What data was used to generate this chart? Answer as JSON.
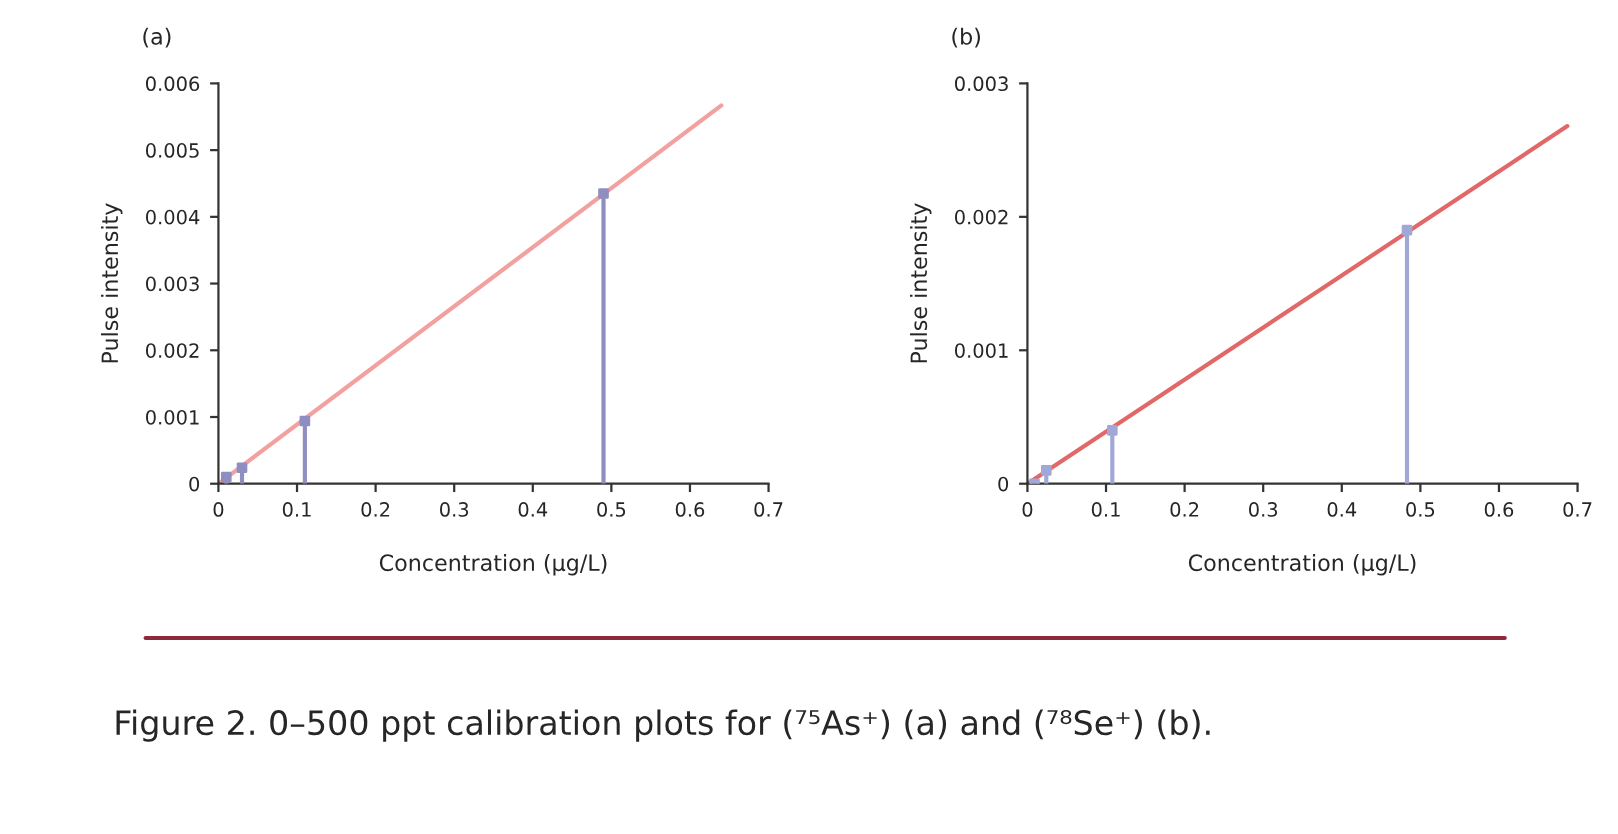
{
  "chart_data": [
    {
      "type": "line",
      "title": "(a)",
      "xlabel": "Concentration (µg/L)",
      "ylabel": "Pulse intensity",
      "xlim": [
        0,
        0.7
      ],
      "xticks": [
        0,
        0.1,
        0.2,
        0.3,
        0.4,
        0.5,
        0.6,
        0.7
      ],
      "ylim": [
        0,
        0.006
      ],
      "yticks": [
        0,
        0.001,
        0.002,
        0.003,
        0.004,
        0.005,
        0.006
      ],
      "grid": false,
      "legend": false,
      "series": [
        {
          "type": "lollipop",
          "color": "#8e8ec0",
          "marker": "square",
          "x": [
            0.01,
            0.03,
            0.11,
            0.49
          ],
          "values": [
            0.0001,
            0.00024,
            0.00094,
            0.00435
          ]
        },
        {
          "color": "#f2a0a0",
          "marker": "none",
          "line_style": "solid",
          "x": [
            0,
            0.64
          ],
          "values": [
            0,
            0.00567
          ]
        }
      ]
    },
    {
      "type": "line",
      "title": "(b)",
      "xlabel": "Concentration (µg/L)",
      "ylabel": "Pulse intensity",
      "xlim": [
        0,
        0.7
      ],
      "xticks": [
        0,
        0.1,
        0.2,
        0.3,
        0.4,
        0.5,
        0.6,
        0.7
      ],
      "ylim": [
        0,
        0.003
      ],
      "yticks": [
        0,
        0.001,
        0.002,
        0.003
      ],
      "grid": false,
      "legend": false,
      "annotations": [
        "Figure 2. 0–500 ppt calibration plots for (⁷⁵As⁺) (a) and (⁷⁸Se⁺) (b)."
      ],
      "series": [
        {
          "type": "lollipop",
          "color": "#a0a8d8",
          "marker": "square",
          "x": [
            0.009,
            0.024,
            0.108,
            0.483
          ],
          "values": [
            0,
            0.0001,
            0.0004,
            0.0019
          ]
        },
        {
          "color": "#e26868",
          "marker": "none",
          "line_style": "solid",
          "x": [
            0,
            0.687
          ],
          "values": [
            0,
            0.00268
          ]
        }
      ]
    }
  ]
}
